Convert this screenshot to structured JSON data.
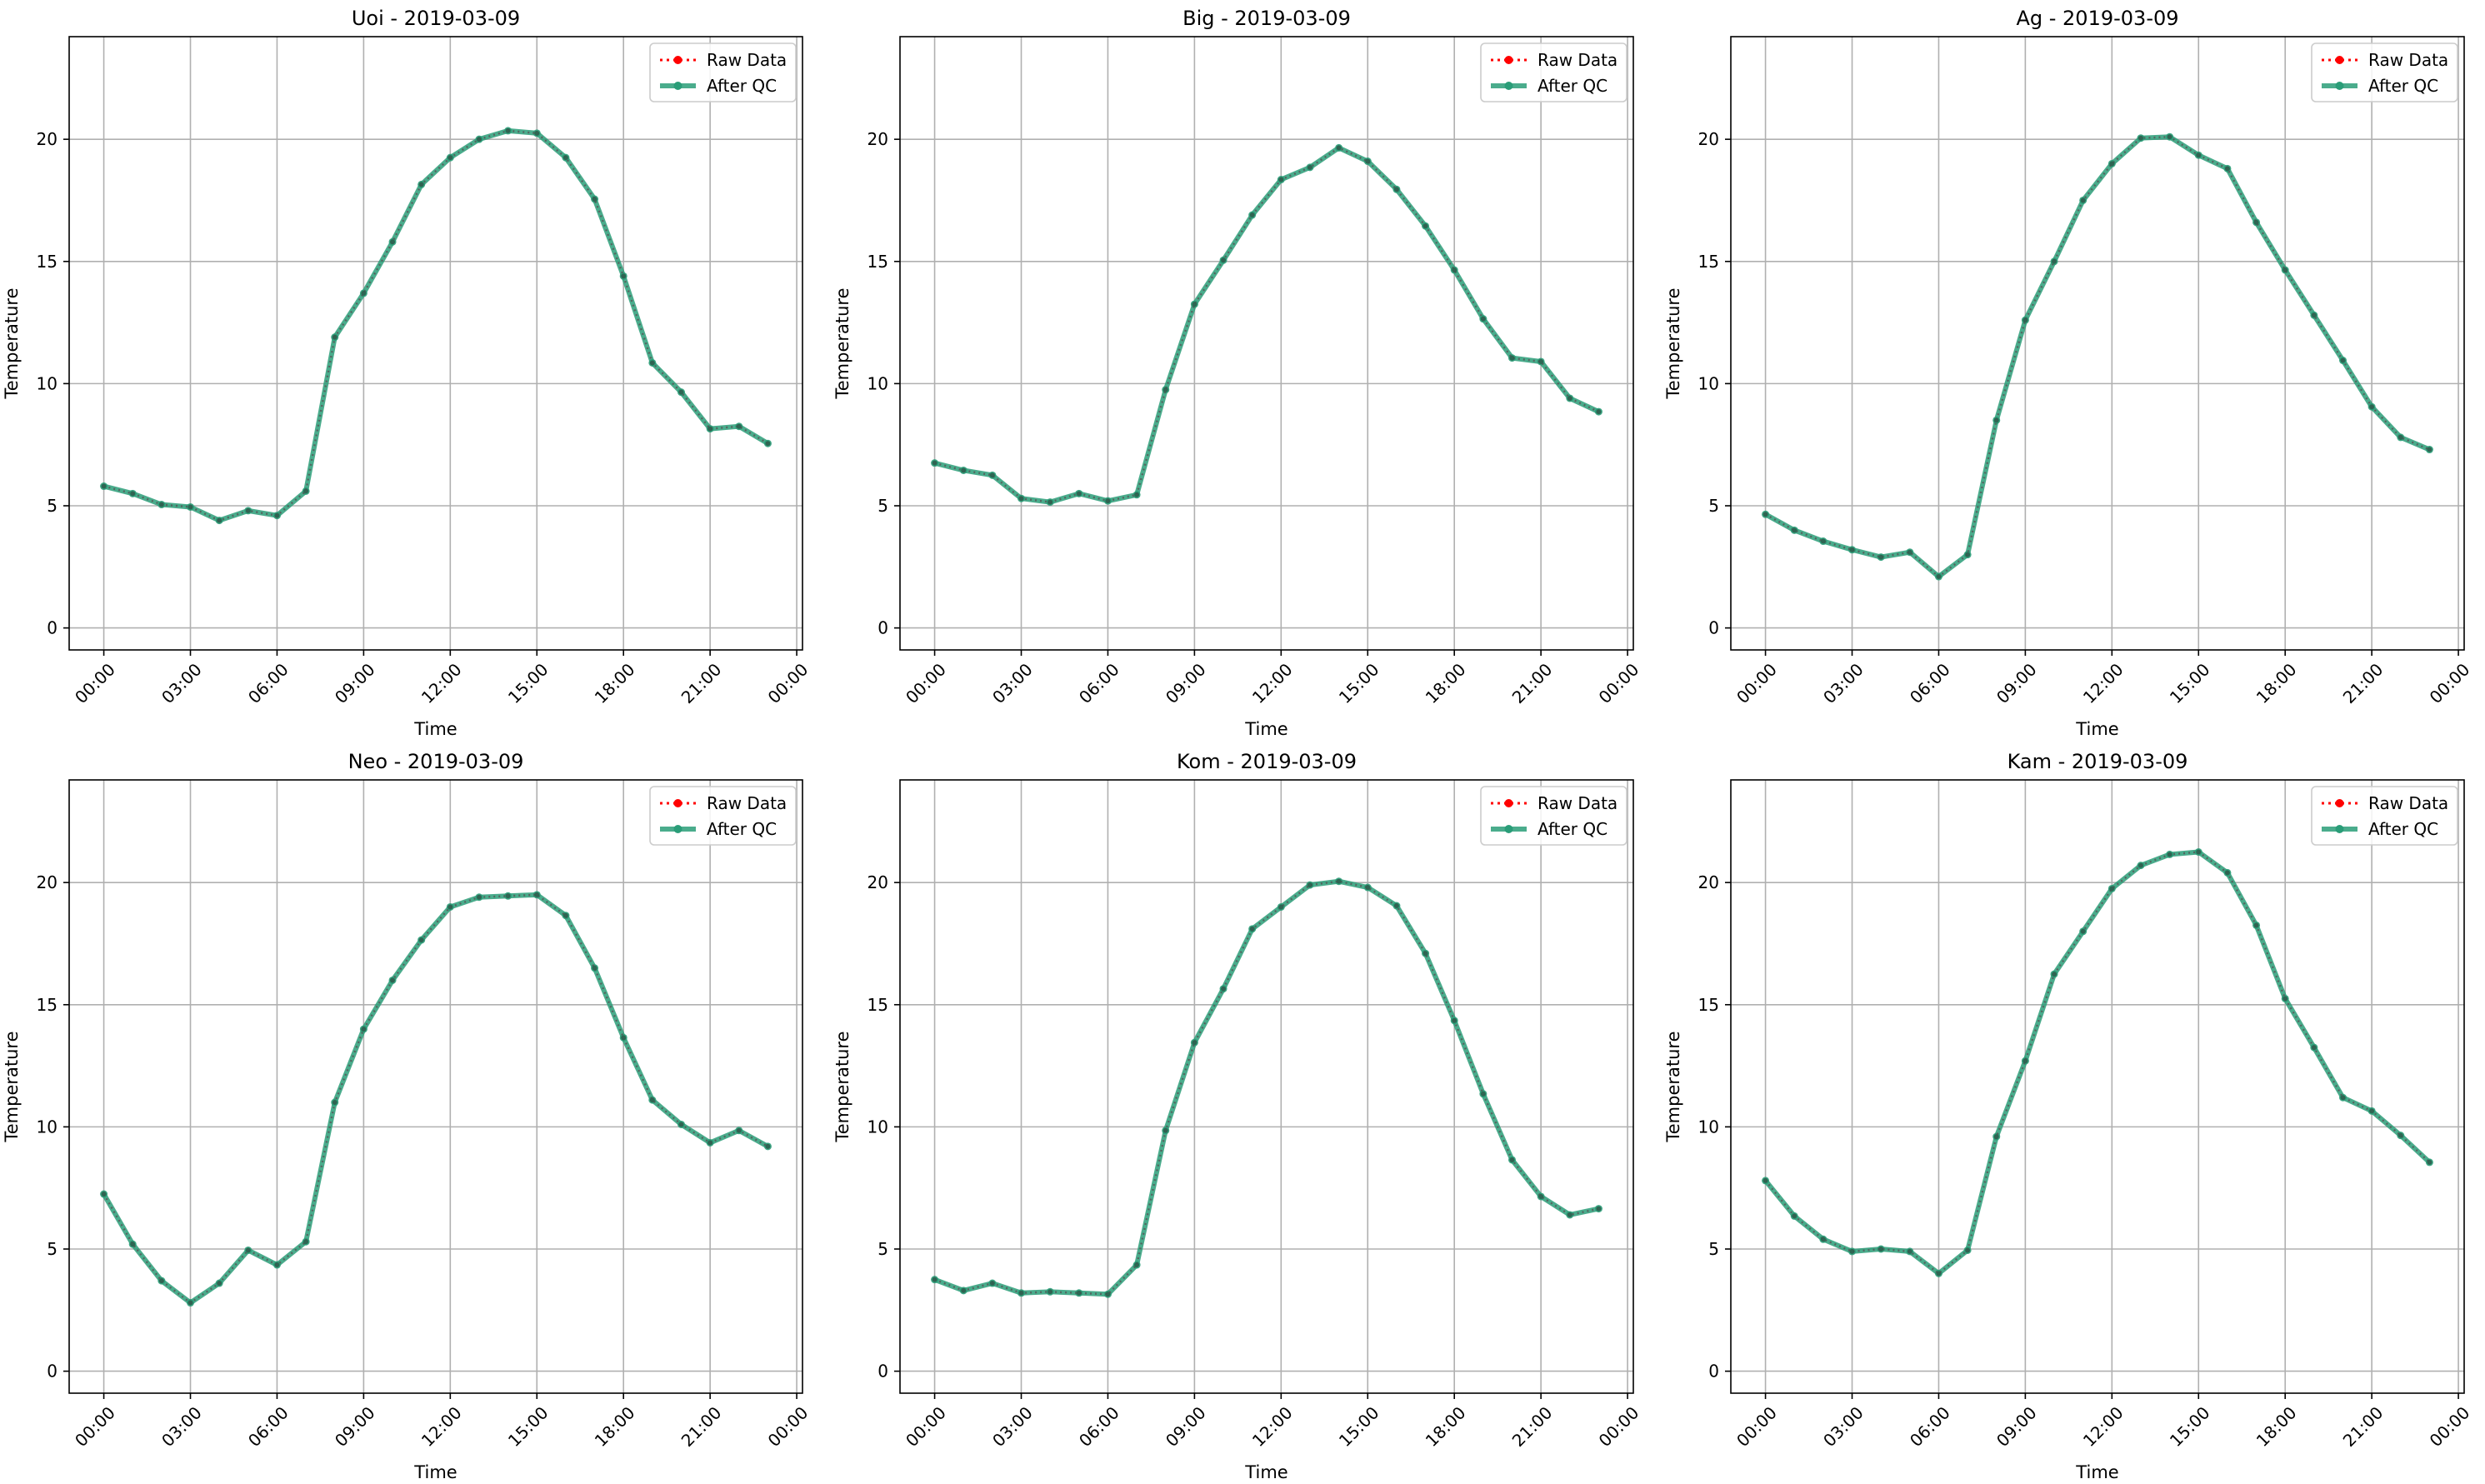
{
  "legend": {
    "raw_label": "Raw Data",
    "qc_label": "After QC",
    "placement": "upper right"
  },
  "colors": {
    "raw": "#ff0000",
    "qc": "#2a9d78",
    "grid": "#b0b0b0",
    "axes": "#000000"
  },
  "chart_data": [
    {
      "type": "line",
      "title": "Uoi - 2019-03-09",
      "xlabel": "Time",
      "ylabel": "Temperature",
      "xticks": [
        "00:00",
        "03:00",
        "06:00",
        "09:00",
        "12:00",
        "15:00",
        "18:00",
        "21:00",
        "00:00"
      ],
      "yticks": [
        0,
        5,
        10,
        15,
        20
      ],
      "xlim": [
        -1.2,
        24.2
      ],
      "ylim": [
        -0.9,
        24.2
      ],
      "grid": true,
      "x": [
        0,
        1,
        2,
        3,
        4,
        5,
        6,
        7,
        8,
        9,
        10,
        11,
        12,
        13,
        14,
        15,
        16,
        17,
        18,
        19,
        20,
        21,
        22,
        23
      ],
      "series": [
        {
          "name": "Raw Data",
          "values": [
            5.8,
            5.5,
            5.05,
            4.95,
            4.4,
            4.8,
            4.6,
            5.6,
            11.9,
            13.7,
            15.8,
            18.15,
            19.25,
            20.0,
            20.35,
            20.25,
            19.25,
            17.55,
            14.4,
            10.85,
            9.65,
            8.15,
            8.25,
            7.55
          ]
        },
        {
          "name": "After QC",
          "values": [
            5.8,
            5.5,
            5.05,
            4.95,
            4.4,
            4.8,
            4.6,
            5.6,
            11.9,
            13.7,
            15.8,
            18.15,
            19.25,
            20.0,
            20.35,
            20.25,
            19.25,
            17.55,
            14.4,
            10.85,
            9.65,
            8.15,
            8.25,
            7.55
          ]
        }
      ]
    },
    {
      "type": "line",
      "title": "Big - 2019-03-09",
      "xlabel": "Time",
      "ylabel": "Temperature",
      "xticks": [
        "00:00",
        "03:00",
        "06:00",
        "09:00",
        "12:00",
        "15:00",
        "18:00",
        "21:00",
        "00:00"
      ],
      "yticks": [
        0,
        5,
        10,
        15,
        20
      ],
      "xlim": [
        -1.2,
        24.2
      ],
      "ylim": [
        -0.9,
        24.2
      ],
      "grid": true,
      "x": [
        0,
        1,
        2,
        3,
        4,
        5,
        6,
        7,
        8,
        9,
        10,
        11,
        12,
        13,
        14,
        15,
        16,
        17,
        18,
        19,
        20,
        21,
        22,
        23
      ],
      "series": [
        {
          "name": "Raw Data",
          "values": [
            6.75,
            6.45,
            6.25,
            5.3,
            5.15,
            5.5,
            5.2,
            5.45,
            9.75,
            13.25,
            15.05,
            16.9,
            18.35,
            18.85,
            19.65,
            19.1,
            17.95,
            16.45,
            14.65,
            12.65,
            11.05,
            10.9,
            9.4,
            8.85
          ]
        },
        {
          "name": "After QC",
          "values": [
            6.75,
            6.45,
            6.25,
            5.3,
            5.15,
            5.5,
            5.2,
            5.45,
            9.75,
            13.25,
            15.05,
            16.9,
            18.35,
            18.85,
            19.65,
            19.1,
            17.95,
            16.45,
            14.65,
            12.65,
            11.05,
            10.9,
            9.4,
            8.85
          ]
        }
      ]
    },
    {
      "type": "line",
      "title": "Ag - 2019-03-09",
      "xlabel": "Time",
      "ylabel": "Temperature",
      "xticks": [
        "00:00",
        "03:00",
        "06:00",
        "09:00",
        "12:00",
        "15:00",
        "18:00",
        "21:00",
        "00:00"
      ],
      "yticks": [
        0,
        5,
        10,
        15,
        20
      ],
      "xlim": [
        -1.2,
        24.2
      ],
      "ylim": [
        -0.9,
        24.2
      ],
      "grid": true,
      "x": [
        0,
        1,
        2,
        3,
        4,
        5,
        6,
        7,
        8,
        9,
        10,
        11,
        12,
        13,
        14,
        15,
        16,
        17,
        18,
        19,
        20,
        21,
        22,
        23
      ],
      "series": [
        {
          "name": "Raw Data",
          "values": [
            4.65,
            4.0,
            3.55,
            3.2,
            2.9,
            3.1,
            2.1,
            3.0,
            8.5,
            12.6,
            15.0,
            17.5,
            19.0,
            20.05,
            20.1,
            19.35,
            18.8,
            16.6,
            14.65,
            12.8,
            10.95,
            9.05,
            7.8,
            7.3
          ]
        },
        {
          "name": "After QC",
          "values": [
            4.65,
            4.0,
            3.55,
            3.2,
            2.9,
            3.1,
            2.1,
            3.0,
            8.5,
            12.6,
            15.0,
            17.5,
            19.0,
            20.05,
            20.1,
            19.35,
            18.8,
            16.6,
            14.65,
            12.8,
            10.95,
            9.05,
            7.8,
            7.3
          ]
        }
      ]
    },
    {
      "type": "line",
      "title": "Neo - 2019-03-09",
      "xlabel": "Time",
      "ylabel": "Temperature",
      "xticks": [
        "00:00",
        "03:00",
        "06:00",
        "09:00",
        "12:00",
        "15:00",
        "18:00",
        "21:00",
        "00:00"
      ],
      "yticks": [
        0,
        5,
        10,
        15,
        20
      ],
      "xlim": [
        -1.2,
        24.2
      ],
      "ylim": [
        -0.9,
        24.2
      ],
      "grid": true,
      "x": [
        0,
        1,
        2,
        3,
        4,
        5,
        6,
        7,
        8,
        9,
        10,
        11,
        12,
        13,
        14,
        15,
        16,
        17,
        18,
        19,
        20,
        21,
        22,
        23
      ],
      "series": [
        {
          "name": "Raw Data",
          "values": [
            7.25,
            5.2,
            3.7,
            2.8,
            3.6,
            4.95,
            4.35,
            5.3,
            11.0,
            14.0,
            16.0,
            17.65,
            19.0,
            19.4,
            19.45,
            19.5,
            18.65,
            16.5,
            13.65,
            11.1,
            10.1,
            9.35,
            9.85,
            9.2
          ]
        },
        {
          "name": "After QC",
          "values": [
            7.25,
            5.2,
            3.7,
            2.8,
            3.6,
            4.95,
            4.35,
            5.3,
            11.0,
            14.0,
            16.0,
            17.65,
            19.0,
            19.4,
            19.45,
            19.5,
            18.65,
            16.5,
            13.65,
            11.1,
            10.1,
            9.35,
            9.85,
            9.2
          ]
        }
      ]
    },
    {
      "type": "line",
      "title": "Kom - 2019-03-09",
      "xlabel": "Time",
      "ylabel": "Temperature",
      "xticks": [
        "00:00",
        "03:00",
        "06:00",
        "09:00",
        "12:00",
        "15:00",
        "18:00",
        "21:00",
        "00:00"
      ],
      "yticks": [
        0,
        5,
        10,
        15,
        20
      ],
      "xlim": [
        -1.2,
        24.2
      ],
      "ylim": [
        -0.9,
        24.2
      ],
      "grid": true,
      "x": [
        0,
        1,
        2,
        3,
        4,
        5,
        6,
        7,
        8,
        9,
        10,
        11,
        12,
        13,
        14,
        15,
        16,
        17,
        18,
        19,
        20,
        21,
        22,
        23
      ],
      "series": [
        {
          "name": "Raw Data",
          "values": [
            3.75,
            3.3,
            3.6,
            3.2,
            3.25,
            3.2,
            3.15,
            4.35,
            9.85,
            13.45,
            15.65,
            18.1,
            19.0,
            19.9,
            20.05,
            19.8,
            19.05,
            17.1,
            14.35,
            11.35,
            8.65,
            7.15,
            6.4,
            6.65
          ]
        },
        {
          "name": "After QC",
          "values": [
            3.75,
            3.3,
            3.6,
            3.2,
            3.25,
            3.2,
            3.15,
            4.35,
            9.85,
            13.45,
            15.65,
            18.1,
            19.0,
            19.9,
            20.05,
            19.8,
            19.05,
            17.1,
            14.35,
            11.35,
            8.65,
            7.15,
            6.4,
            6.65
          ]
        }
      ]
    },
    {
      "type": "line",
      "title": "Kam - 2019-03-09",
      "xlabel": "Time",
      "ylabel": "Temperature",
      "xticks": [
        "00:00",
        "03:00",
        "06:00",
        "09:00",
        "12:00",
        "15:00",
        "18:00",
        "21:00",
        "00:00"
      ],
      "yticks": [
        0,
        5,
        10,
        15,
        20
      ],
      "xlim": [
        -1.2,
        24.2
      ],
      "ylim": [
        -0.9,
        24.2
      ],
      "grid": true,
      "x": [
        0,
        1,
        2,
        3,
        4,
        5,
        6,
        7,
        8,
        9,
        10,
        11,
        12,
        13,
        14,
        15,
        16,
        17,
        18,
        19,
        20,
        21,
        22,
        23
      ],
      "series": [
        {
          "name": "Raw Data",
          "values": [
            7.8,
            6.35,
            5.4,
            4.9,
            5.0,
            4.9,
            4.0,
            4.95,
            9.6,
            12.7,
            16.25,
            18.0,
            19.75,
            20.7,
            21.15,
            21.25,
            20.4,
            18.25,
            15.25,
            13.25,
            11.2,
            10.65,
            9.65,
            8.55
          ]
        },
        {
          "name": "After QC",
          "values": [
            7.8,
            6.35,
            5.4,
            4.9,
            5.0,
            4.9,
            4.0,
            4.95,
            9.6,
            12.7,
            16.25,
            18.0,
            19.75,
            20.7,
            21.15,
            21.25,
            20.4,
            18.25,
            15.25,
            13.25,
            11.2,
            10.65,
            9.65,
            8.55
          ]
        }
      ]
    }
  ]
}
